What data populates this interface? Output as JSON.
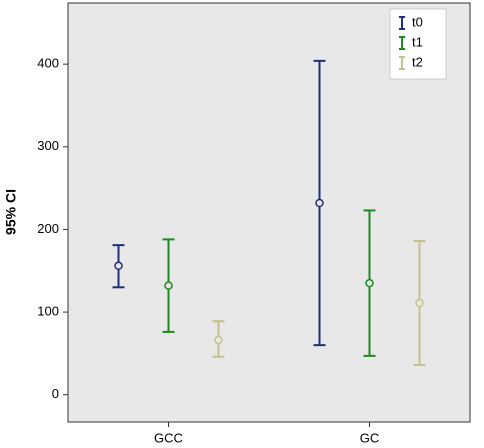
{
  "chart_data": {
    "type": "errorbar",
    "y_label": "95% CI",
    "categories": [
      "GCC",
      "GC"
    ],
    "series": [
      {
        "name": "t0",
        "color": "#1f2f7a",
        "values": [
          156,
          232
        ],
        "lower": [
          130,
          60
        ],
        "upper": [
          181,
          404
        ]
      },
      {
        "name": "t1",
        "color": "#1e8a1e",
        "values": [
          132,
          135
        ],
        "lower": [
          76,
          47
        ],
        "upper": [
          188,
          223
        ]
      },
      {
        "name": "t2",
        "color": "#c8c08c",
        "values": [
          66,
          111
        ],
        "lower": [
          46,
          36
        ],
        "upper": [
          89,
          186
        ]
      }
    ],
    "ylim": [
      -33,
      474
    ],
    "yticks": [
      0,
      100,
      200,
      300,
      400
    ],
    "legend": "upper-right"
  }
}
